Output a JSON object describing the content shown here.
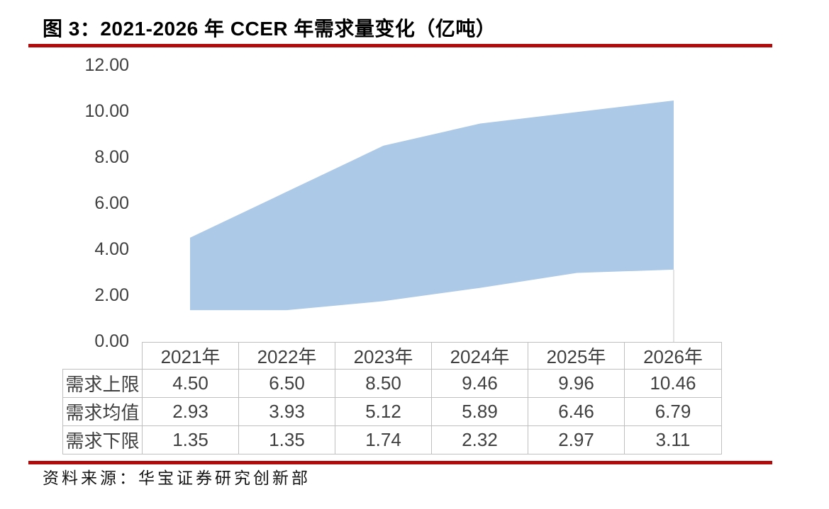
{
  "page": {
    "title": "图 3：2021-2026 年 CCER 年需求量变化（亿吨）",
    "source": "资料来源：华宝证券研究创新部"
  },
  "colors": {
    "accent_red": "#B20B0B",
    "band_fill": "#ACC9E8",
    "axis_text": "#404040",
    "table_border": "#BFBFBF",
    "grid_line": "#D9D9D9"
  },
  "chart_data": {
    "type": "area",
    "title": "2021-2026 年 CCER 年需求量变化（亿吨）",
    "categories": [
      "2021年",
      "2022年",
      "2023年",
      "2024年",
      "2025年",
      "2026年"
    ],
    "series": [
      {
        "name": "需求上限",
        "values": [
          4.5,
          6.5,
          8.5,
          9.46,
          9.96,
          10.46
        ]
      },
      {
        "name": "需求均值",
        "values": [
          2.93,
          3.93,
          5.12,
          5.89,
          6.46,
          6.79
        ]
      },
      {
        "name": "需求下限",
        "values": [
          1.35,
          1.35,
          1.74,
          2.32,
          2.97,
          3.11
        ]
      }
    ],
    "band_between": [
      "需求下限",
      "需求上限"
    ],
    "ylim": [
      0,
      12
    ],
    "ytick_step": 2,
    "yticks": [
      "12.00",
      "10.00",
      "8.00",
      "6.00",
      "4.00",
      "2.00",
      "0.00"
    ],
    "unit": "亿吨",
    "legend": "none",
    "grid": false
  },
  "table": {
    "corner": "",
    "columns": [
      "2021年",
      "2022年",
      "2023年",
      "2024年",
      "2025年",
      "2026年"
    ],
    "rows": [
      {
        "label": "需求上限",
        "values": [
          "4.50",
          "6.50",
          "8.50",
          "9.46",
          "9.96",
          "10.46"
        ]
      },
      {
        "label": "需求均值",
        "values": [
          "2.93",
          "3.93",
          "5.12",
          "5.89",
          "6.46",
          "6.79"
        ]
      },
      {
        "label": "需求下限",
        "values": [
          "1.35",
          "1.35",
          "1.74",
          "2.32",
          "2.97",
          "3.11"
        ]
      }
    ]
  }
}
